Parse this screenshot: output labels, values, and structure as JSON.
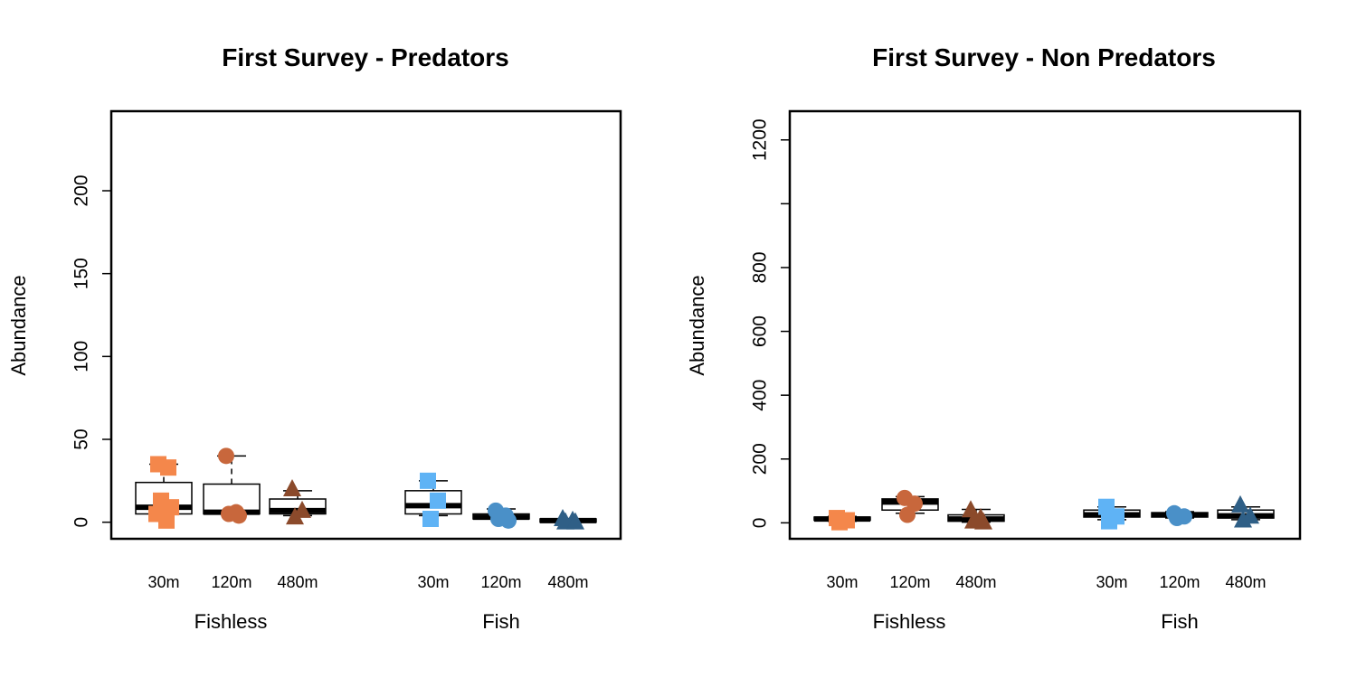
{
  "chart_data": [
    {
      "type": "box",
      "title": "First Survey - Predators",
      "ylabel": "Abundance",
      "ylim": [
        -10,
        248
      ],
      "yticks": [
        0,
        50,
        100,
        150,
        200
      ],
      "groups": [
        "Fishless",
        "Fish"
      ],
      "categories": [
        "30m",
        "120m",
        "480m",
        "30m",
        "120m",
        "480m"
      ],
      "boxes": [
        {
          "group": "Fishless",
          "category": "30m",
          "min": 5,
          "q1": 5,
          "median": 9,
          "q3": 24,
          "max": 35,
          "color": "#F4874B",
          "marker": "square",
          "points": [
            35,
            33,
            13,
            9,
            5,
            1
          ]
        },
        {
          "group": "Fishless",
          "category": "120m",
          "min": 5,
          "q1": 5,
          "median": 6,
          "q3": 23,
          "max": 40,
          "color": "#C8673C",
          "marker": "circle",
          "points": [
            40,
            6,
            5,
            4
          ]
        },
        {
          "group": "Fishless",
          "category": "480m",
          "min": 4,
          "q1": 5,
          "median": 7,
          "q3": 14,
          "max": 19,
          "color": "#8B4A2B",
          "marker": "triangle",
          "points": [
            20,
            7,
            3
          ]
        },
        {
          "group": "Fish",
          "category": "30m",
          "min": 4,
          "q1": 5,
          "median": 10,
          "q3": 19,
          "max": 25,
          "color": "#5FB3F5",
          "marker": "square",
          "points": [
            25,
            13,
            2
          ]
        },
        {
          "group": "Fish",
          "category": "120m",
          "min": 2,
          "q1": 2,
          "median": 3,
          "q3": 5,
          "max": 8,
          "color": "#4A90C8",
          "marker": "circle",
          "points": [
            7,
            4,
            2,
            1
          ]
        },
        {
          "group": "Fish",
          "category": "480m",
          "min": 0,
          "q1": 0,
          "median": 1,
          "q3": 2,
          "max": 2,
          "color": "#2F5F86",
          "marker": "triangle",
          "points": [
            2,
            1,
            0,
            0
          ]
        }
      ]
    },
    {
      "type": "box",
      "title": "First Survey - Non Predators",
      "ylabel": "Abundance",
      "ylim": [
        -50,
        1290
      ],
      "yticks": [
        0,
        200,
        400,
        600,
        800,
        1000,
        1200
      ],
      "yticklabels": [
        "0",
        "200",
        "400",
        "600",
        "800",
        "",
        "1200"
      ],
      "groups": [
        "Fishless",
        "Fish"
      ],
      "categories": [
        "30m",
        "120m",
        "480m",
        "30m",
        "120m",
        "480m"
      ],
      "boxes": [
        {
          "group": "Fishless",
          "category": "30m",
          "min": 5,
          "q1": 8,
          "median": 12,
          "q3": 18,
          "max": 20,
          "color": "#F4874B",
          "marker": "square",
          "points": [
            15,
            8,
            2
          ]
        },
        {
          "group": "Fishless",
          "category": "120m",
          "min": 30,
          "q1": 40,
          "median": 65,
          "q3": 75,
          "max": 82,
          "color": "#C8673C",
          "marker": "circle",
          "points": [
            78,
            60,
            25
          ]
        },
        {
          "group": "Fishless",
          "category": "480m",
          "min": 2,
          "q1": 5,
          "median": 12,
          "q3": 25,
          "max": 42,
          "color": "#8B4A2B",
          "marker": "triangle",
          "points": [
            40,
            15,
            5,
            2
          ]
        },
        {
          "group": "Fish",
          "category": "30m",
          "min": 10,
          "q1": 18,
          "median": 25,
          "q3": 40,
          "max": 50,
          "color": "#5FB3F5",
          "marker": "square",
          "points": [
            50,
            20,
            5
          ]
        },
        {
          "group": "Fish",
          "category": "120m",
          "min": 15,
          "q1": 18,
          "median": 25,
          "q3": 32,
          "max": 35,
          "color": "#4A90C8",
          "marker": "circle",
          "points": [
            30,
            20,
            15
          ]
        },
        {
          "group": "Fish",
          "category": "480m",
          "min": 10,
          "q1": 15,
          "median": 22,
          "q3": 40,
          "max": 50,
          "color": "#2F5F86",
          "marker": "triangle",
          "points": [
            55,
            20,
            8
          ]
        }
      ]
    }
  ]
}
